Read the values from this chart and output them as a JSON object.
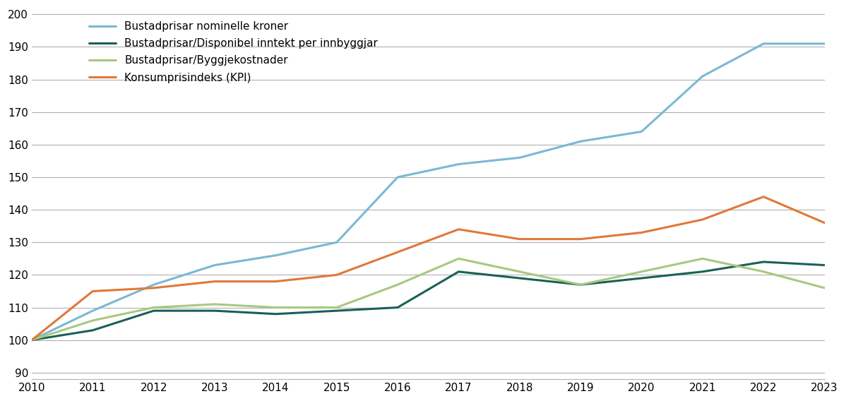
{
  "years": [
    2010,
    2011,
    2012,
    2013,
    2014,
    2015,
    2016,
    2017,
    2018,
    2019,
    2020,
    2021,
    2022,
    2023
  ],
  "bustadprisar_nominelle": [
    100,
    109,
    117,
    123,
    126,
    130,
    150,
    154,
    156,
    161,
    164,
    181,
    191,
    191
  ],
  "bustadprisar_disponibel": [
    100,
    103,
    109,
    109,
    108,
    109,
    110,
    121,
    119,
    117,
    119,
    121,
    124,
    123
  ],
  "bustadprisar_byggjekostnader": [
    100,
    106,
    110,
    111,
    110,
    110,
    117,
    125,
    121,
    117,
    121,
    125,
    121,
    116
  ],
  "kpi": [
    100,
    115,
    116,
    118,
    118,
    120,
    127,
    134,
    131,
    131,
    133,
    137,
    144,
    136
  ],
  "line_colors": {
    "nominelle": "#7ab8d4",
    "disponibel": "#1a6055",
    "byggjekostnader": "#a8c880",
    "kpi": "#e07838"
  },
  "legend_labels": [
    "Bustadprisar nominelle kroner",
    "Bustadprisar/Disponibel inntekt per innbyggjar",
    "Bustadprisar/Byggjekostnader",
    "Konsumprisindeks (KPI)"
  ],
  "ylim": [
    88,
    202
  ],
  "yticks": [
    90,
    100,
    110,
    120,
    130,
    140,
    150,
    160,
    170,
    180,
    190,
    200
  ],
  "background_color": "#ffffff",
  "grid_color": "#b0b0b0",
  "line_width": 2.2
}
